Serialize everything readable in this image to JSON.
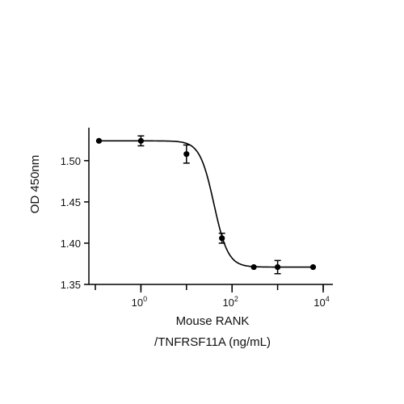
{
  "chart_data": {
    "type": "scatter",
    "x_scale": "log",
    "xlim": [
      0.1,
      10000
    ],
    "ylim": [
      1.35,
      1.54
    ],
    "x_ticks": [
      {
        "value": 1,
        "base": "10",
        "exp": "0"
      },
      {
        "value": 100,
        "base": "10",
        "exp": "2"
      },
      {
        "value": 10000,
        "base": "10",
        "exp": "4"
      }
    ],
    "y_ticks": [
      {
        "value": 1.35,
        "label": "1.35"
      },
      {
        "value": 1.4,
        "label": "1.40"
      },
      {
        "value": 1.45,
        "label": "1.45"
      },
      {
        "value": 1.5,
        "label": "1.50"
      }
    ],
    "ylabel": "OD 450nm",
    "xlabel_lines": [
      "Mouse RANK",
      "/TNFRSF11A (ng/mL)"
    ],
    "points": [
      {
        "x": 0.12,
        "y": 1.524,
        "err": 0
      },
      {
        "x": 1,
        "y": 1.524,
        "err": 0.006
      },
      {
        "x": 10,
        "y": 1.508,
        "err": 0.011
      },
      {
        "x": 60,
        "y": 1.406,
        "err": 0.006
      },
      {
        "x": 300,
        "y": 1.371,
        "err": 0
      },
      {
        "x": 1000,
        "y": 1.371,
        "err": 0.008
      },
      {
        "x": 6000,
        "y": 1.371,
        "err": 0
      }
    ],
    "fit": {
      "model": "4PL",
      "top": 1.524,
      "bottom": 1.371,
      "ec50": 40,
      "hill": 2.8
    },
    "grid": false,
    "legend": "none",
    "color": "#000000"
  }
}
